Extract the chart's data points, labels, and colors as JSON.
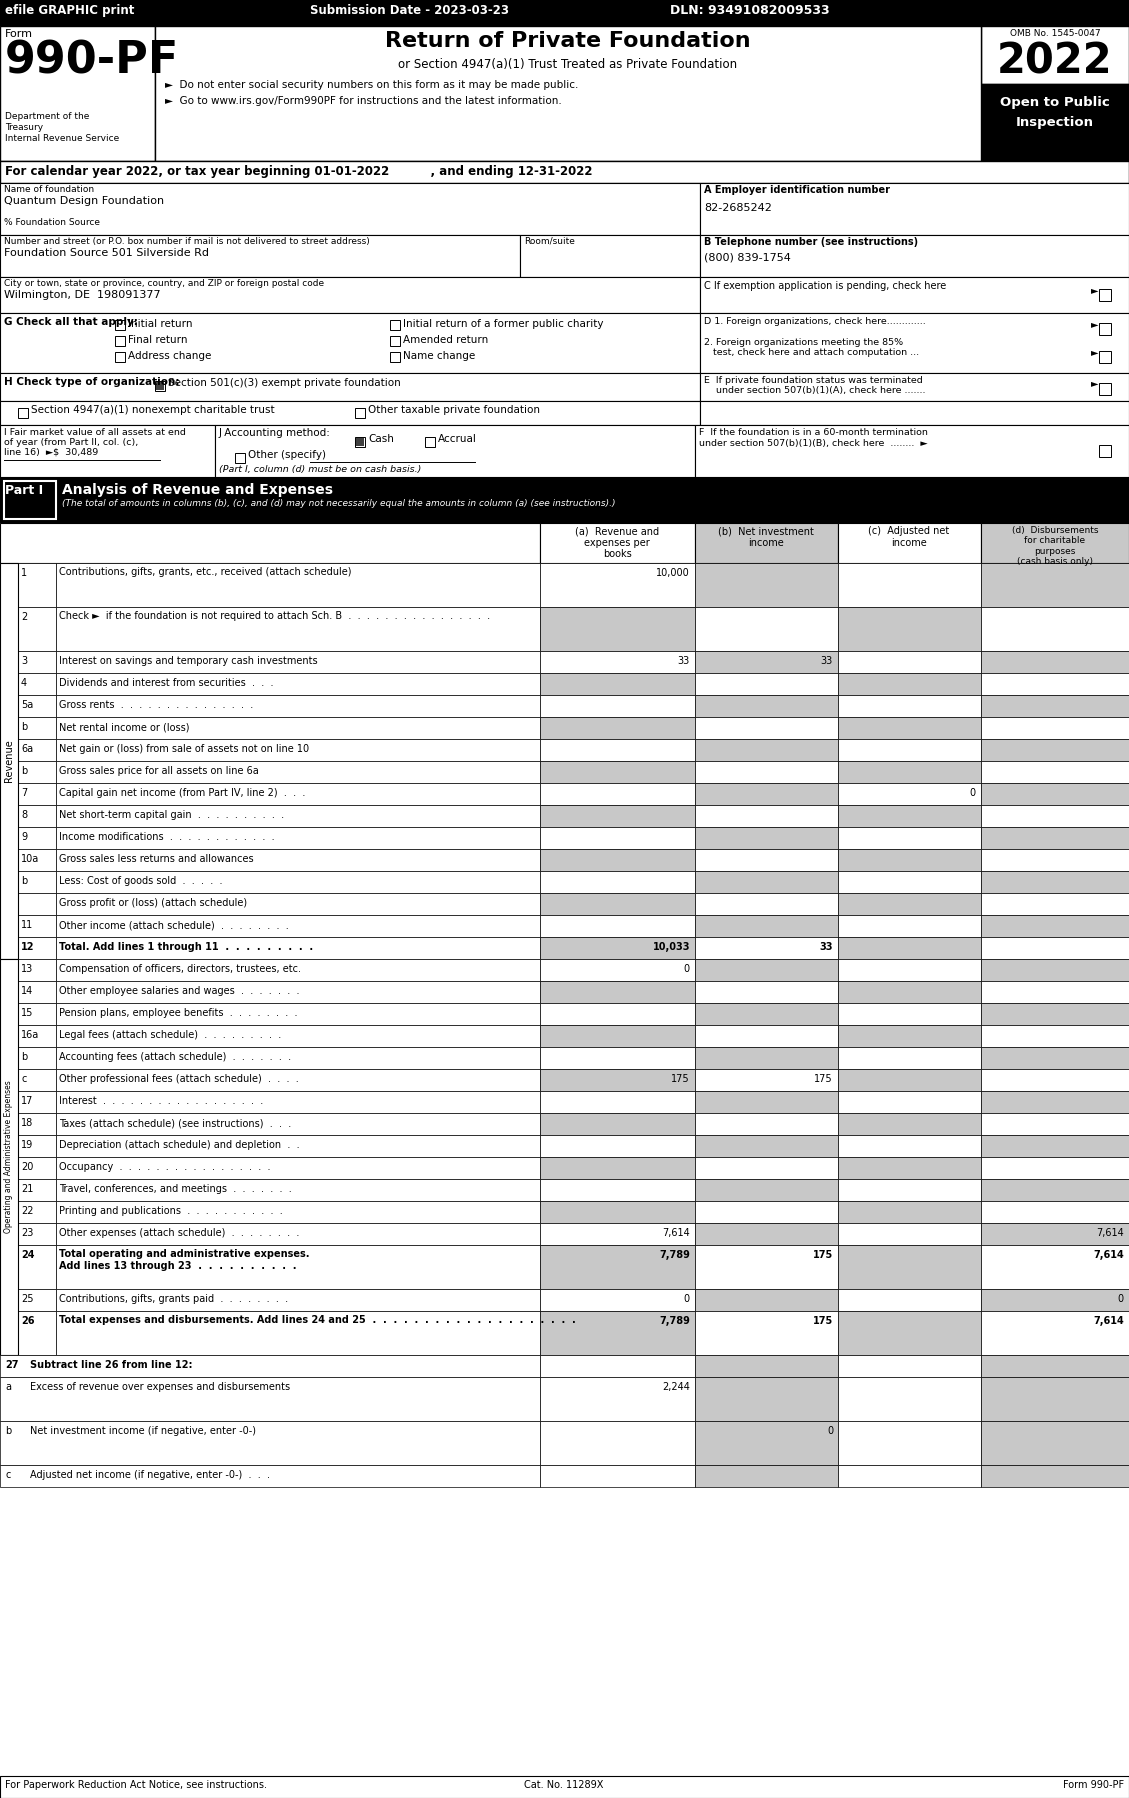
{
  "top_bar_left": "efile GRAPHIC print",
  "top_bar_center": "Submission Date - 2023-03-23",
  "top_bar_right": "DLN: 93491082009533",
  "form_number": "990-PF",
  "dept_lines": [
    "Department of the",
    "Treasury",
    "Internal Revenue Service"
  ],
  "title": "Return of Private Foundation",
  "subtitle": "or Section 4947(a)(1) Trust Treated as Private Foundation",
  "bullet1": "►  Do not enter social security numbers on this form as it may be made public.",
  "bullet2": "►  Go to www.irs.gov/Form990PF for instructions and the latest information.",
  "omb": "OMB No. 1545-0047",
  "year": "2022",
  "open_public": "Open to Public\nInspection",
  "cal_year": "For calendar year 2022, or tax year beginning 01-01-2022          , and ending 12-31-2022",
  "name_label": "Name of foundation",
  "name_value": "Quantum Design Foundation",
  "pct_label": "% Foundation Source",
  "ein_label": "A Employer identification number",
  "ein_value": "82-2685242",
  "addr_label": "Number and street (or P.O. box number if mail is not delivered to street address)",
  "addr_value": "Foundation Source 501 Silverside Rd",
  "room_label": "Room/suite",
  "phone_label": "B Telephone number (see instructions)",
  "phone_value": "(800) 839-1754",
  "city_label": "City or town, state or province, country, and ZIP or foreign postal code",
  "city_value": "Wilmington, DE  198091377",
  "c_label": "C If exemption application is pending, check here",
  "g_label": "G Check all that apply:",
  "d1_label": "D 1. Foreign organizations, check here.............",
  "d2_label": "2. Foreign organizations meeting the 85%\n   test, check here and attach computation ...",
  "e_label": "E  If private foundation status was terminated\n    under section 507(b)(1)(A), check here .......",
  "h_label": "H Check type of organization:",
  "h1": "Section 501(c)(3) exempt private foundation",
  "h2": "Section 4947(a)(1) nonexempt charitable trust",
  "h3": "Other taxable private foundation",
  "i_text1": "I Fair market value of all assets at end",
  "i_text2": "of year (from Part II, col. (c),",
  "i_text3": "line 16)  ►$  30,489",
  "j_label": "J Accounting method:",
  "j_cash": "Cash",
  "j_accrual": "Accrual",
  "j_other": "Other (specify)",
  "j_note": "(Part I, column (d) must be on cash basis.)",
  "f_text1": "F  If the foundation is in a 60-month termination",
  "f_text2": "under section 507(b)(1)(B), check here  ........  ►",
  "part1_tag": "Part I",
  "part1_title": "Analysis of Revenue and Expenses",
  "part1_sub": "(The total of amounts in columns (b), (c), and (d) may not necessarily equal the amounts in column (a) (see instructions).)",
  "col_a": "(a)  Revenue and\nexpenses per\nbooks",
  "col_b": "(b)  Net investment\nincome",
  "col_c": "(c)  Adjusted net\nincome",
  "col_d": "(d)  Disbursements\nfor charitable\npurposes\n(cash basis only)",
  "revenue_label": "Revenue",
  "expense_label": "Operating and Administrative Expenses",
  "revenue_rows": [
    {
      "num": "1",
      "label": "Contributions, gifts, grants, etc., received (attach schedule)",
      "a": "10,000",
      "b": "",
      "c": "",
      "d": "",
      "bold": false,
      "gray_a": false
    },
    {
      "num": "2",
      "label": "Check ►  if the foundation is not required to attach Sch. B  .  .  .  .  .  .  .  .  .  .  .  .  .  .  .  .",
      "a": "",
      "b": "",
      "c": "",
      "d": "",
      "bold": false,
      "gray_a": true
    },
    {
      "num": "3",
      "label": "Interest on savings and temporary cash investments",
      "a": "33",
      "b": "33",
      "c": "",
      "d": "",
      "bold": false,
      "gray_a": false
    },
    {
      "num": "4",
      "label": "Dividends and interest from securities  .  .  .",
      "a": "",
      "b": "",
      "c": "",
      "d": "",
      "bold": false,
      "gray_a": true
    },
    {
      "num": "5a",
      "label": "Gross rents  .  .  .  .  .  .  .  .  .  .  .  .  .  .  .",
      "a": "",
      "b": "",
      "c": "",
      "d": "",
      "bold": false,
      "gray_a": false
    },
    {
      "num": "b",
      "label": "Net rental income or (loss)",
      "a": "",
      "b": "",
      "c": "",
      "d": "",
      "bold": false,
      "gray_a": true
    },
    {
      "num": "6a",
      "label": "Net gain or (loss) from sale of assets not on line 10",
      "a": "",
      "b": "",
      "c": "",
      "d": "",
      "bold": false,
      "gray_a": false
    },
    {
      "num": "b",
      "label": "Gross sales price for all assets on line 6a",
      "a": "",
      "b": "",
      "c": "",
      "d": "",
      "bold": false,
      "gray_a": true
    },
    {
      "num": "7",
      "label": "Capital gain net income (from Part IV, line 2)  .  .  .",
      "a": "",
      "b": "",
      "c": "0",
      "d": "",
      "bold": false,
      "gray_a": false
    },
    {
      "num": "8",
      "label": "Net short-term capital gain  .  .  .  .  .  .  .  .  .  .",
      "a": "",
      "b": "",
      "c": "",
      "d": "",
      "bold": false,
      "gray_a": true
    },
    {
      "num": "9",
      "label": "Income modifications  .  .  .  .  .  .  .  .  .  .  .  .",
      "a": "",
      "b": "",
      "c": "",
      "d": "",
      "bold": false,
      "gray_a": false
    },
    {
      "num": "10a",
      "label": "Gross sales less returns and allowances",
      "a": "",
      "b": "",
      "c": "",
      "d": "",
      "bold": false,
      "gray_a": true
    },
    {
      "num": "b",
      "label": "Less: Cost of goods sold  .  .  .  .  .",
      "a": "",
      "b": "",
      "c": "",
      "d": "",
      "bold": false,
      "gray_a": false
    },
    {
      "num": "",
      "label": "Gross profit or (loss) (attach schedule)",
      "a": "",
      "b": "",
      "c": "",
      "d": "",
      "bold": false,
      "gray_a": true
    },
    {
      "num": "11",
      "label": "Other income (attach schedule)  .  .  .  .  .  .  .  .",
      "a": "",
      "b": "",
      "c": "",
      "d": "",
      "bold": false,
      "gray_a": false
    },
    {
      "num": "12",
      "label": "Total. Add lines 1 through 11  .  .  .  .  .  .  .  .  .",
      "a": "10,033",
      "b": "33",
      "c": "",
      "d": "",
      "bold": true,
      "gray_a": true
    }
  ],
  "expense_rows": [
    {
      "num": "13",
      "label": "Compensation of officers, directors, trustees, etc.",
      "a": "0",
      "b": "",
      "c": "",
      "d": "",
      "bold": false,
      "gray_a": false
    },
    {
      "num": "14",
      "label": "Other employee salaries and wages  .  .  .  .  .  .  .",
      "a": "",
      "b": "",
      "c": "",
      "d": "",
      "bold": false,
      "gray_a": true
    },
    {
      "num": "15",
      "label": "Pension plans, employee benefits  .  .  .  .  .  .  .  .",
      "a": "",
      "b": "",
      "c": "",
      "d": "",
      "bold": false,
      "gray_a": false
    },
    {
      "num": "16a",
      "label": "Legal fees (attach schedule)  .  .  .  .  .  .  .  .  .",
      "a": "",
      "b": "",
      "c": "",
      "d": "",
      "bold": false,
      "gray_a": true
    },
    {
      "num": "b",
      "label": "Accounting fees (attach schedule)  .  .  .  .  .  .  .",
      "a": "",
      "b": "",
      "c": "",
      "d": "",
      "bold": false,
      "gray_a": false
    },
    {
      "num": "c",
      "label": "Other professional fees (attach schedule)  .  .  .  .",
      "a": "175",
      "b": "175",
      "c": "",
      "d": "",
      "bold": false,
      "gray_a": true
    },
    {
      "num": "17",
      "label": "Interest  .  .  .  .  .  .  .  .  .  .  .  .  .  .  .  .  .  .",
      "a": "",
      "b": "",
      "c": "",
      "d": "",
      "bold": false,
      "gray_a": false
    },
    {
      "num": "18",
      "label": "Taxes (attach schedule) (see instructions)  .  .  .",
      "a": "",
      "b": "",
      "c": "",
      "d": "",
      "bold": false,
      "gray_a": true
    },
    {
      "num": "19",
      "label": "Depreciation (attach schedule) and depletion  .  .",
      "a": "",
      "b": "",
      "c": "",
      "d": "",
      "bold": false,
      "gray_a": false
    },
    {
      "num": "20",
      "label": "Occupancy  .  .  .  .  .  .  .  .  .  .  .  .  .  .  .  .  .",
      "a": "",
      "b": "",
      "c": "",
      "d": "",
      "bold": false,
      "gray_a": true
    },
    {
      "num": "21",
      "label": "Travel, conferences, and meetings  .  .  .  .  .  .  .",
      "a": "",
      "b": "",
      "c": "",
      "d": "",
      "bold": false,
      "gray_a": false
    },
    {
      "num": "22",
      "label": "Printing and publications  .  .  .  .  .  .  .  .  .  .  .",
      "a": "",
      "b": "",
      "c": "",
      "d": "",
      "bold": false,
      "gray_a": true
    },
    {
      "num": "23",
      "label": "Other expenses (attach schedule)  .  .  .  .  .  .  .  .",
      "a": "7,614",
      "b": "",
      "c": "",
      "d": "7,614",
      "bold": false,
      "gray_a": false
    },
    {
      "num": "24",
      "label": "Total operating and administrative expenses.\nAdd lines 13 through 23  .  .  .  .  .  .  .  .  .  .",
      "a": "7,789",
      "b": "175",
      "c": "",
      "d": "7,614",
      "bold": true,
      "gray_a": true
    },
    {
      "num": "25",
      "label": "Contributions, gifts, grants paid  .  .  .  .  .  .  .  .",
      "a": "0",
      "b": "",
      "c": "",
      "d": "0",
      "bold": false,
      "gray_a": false
    },
    {
      "num": "26",
      "label": "Total expenses and disbursements. Add lines 24 and 25  .  .  .  .  .  .  .  .  .  .  .  .  .  .  .  .  .  .  .  .",
      "a": "7,789",
      "b": "175",
      "c": "",
      "d": "7,614",
      "bold": true,
      "gray_a": true
    }
  ],
  "subtract_rows": [
    {
      "num": "27",
      "label": "Subtract line 26 from line 12:",
      "a": "",
      "b": "",
      "c": "",
      "d": "",
      "bold": true
    },
    {
      "num": "a",
      "label": "Excess of revenue over expenses and disbursements",
      "a": "2,244",
      "b": "",
      "c": "",
      "d": "",
      "bold": false
    },
    {
      "num": "b",
      "label": "Net investment income (if negative, enter -0-)",
      "a": "",
      "b": "0",
      "c": "",
      "d": "",
      "bold": false
    },
    {
      "num": "c",
      "label": "Adjusted net income (if negative, enter -0-)  .  .  .",
      "a": "",
      "b": "",
      "c": "",
      "d": "",
      "bold": false
    }
  ],
  "footer_left": "For Paperwork Reduction Act Notice, see instructions.",
  "footer_center": "Cat. No. 11289X",
  "footer_right": "Form 990-PF",
  "gray": "#c8c8c8",
  "white": "#ffffff",
  "black": "#000000"
}
